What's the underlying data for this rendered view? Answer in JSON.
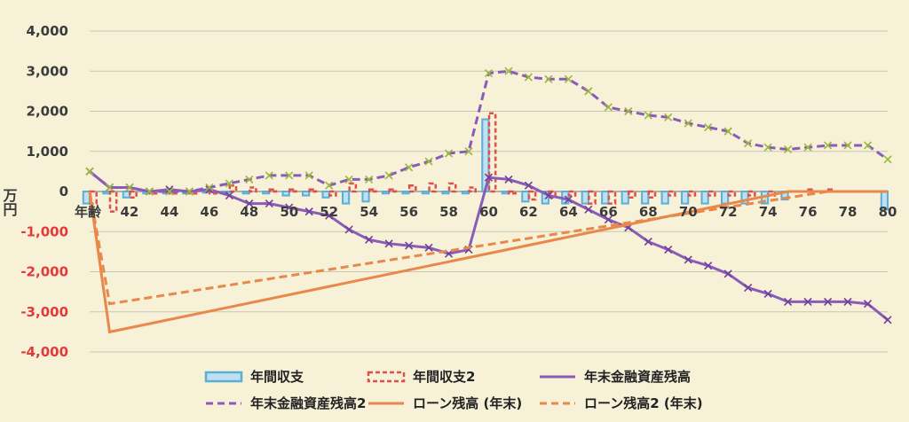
{
  "chart_data": {
    "type": "bar",
    "title": "",
    "ylabel": "万円",
    "xlabel_prefix": "年齢",
    "ylim": [
      -4000,
      4000
    ],
    "y_ticks": [
      {
        "value": 4000,
        "label": "4,000"
      },
      {
        "value": 3000,
        "label": "3,000"
      },
      {
        "value": 2000,
        "label": "2,000"
      },
      {
        "value": 1000,
        "label": "1,000"
      },
      {
        "value": 0,
        "label": "0"
      },
      {
        "value": -1000,
        "label": "-1,000"
      },
      {
        "value": -2000,
        "label": "-2,000"
      },
      {
        "value": -3000,
        "label": "-3,000"
      },
      {
        "value": -4000,
        "label": "-4,000"
      }
    ],
    "x_ticks": [
      "42",
      "44",
      "46",
      "48",
      "50",
      "52",
      "54",
      "56",
      "58",
      "60",
      "62",
      "64",
      "66",
      "68",
      "70",
      "72",
      "74",
      "76",
      "78",
      "80"
    ],
    "ages": [
      40,
      41,
      42,
      43,
      44,
      45,
      46,
      47,
      48,
      49,
      50,
      51,
      52,
      53,
      54,
      55,
      56,
      57,
      58,
      59,
      60,
      61,
      62,
      63,
      64,
      65,
      66,
      67,
      68,
      69,
      70,
      71,
      72,
      73,
      74,
      75,
      76,
      77,
      78,
      79,
      80
    ],
    "grid": true,
    "legend_position": "bottom",
    "series": [
      {
        "name": "年間収支",
        "kind": "bar",
        "color": "#5aaed8",
        "values": [
          -300,
          -50,
          -150,
          -50,
          -50,
          -50,
          -30,
          -30,
          -50,
          -50,
          -100,
          -100,
          -150,
          -300,
          -250,
          -50,
          -50,
          -50,
          -50,
          -50,
          1800,
          -50,
          -250,
          -300,
          -300,
          -300,
          -300,
          -300,
          -300,
          -300,
          -300,
          -300,
          -300,
          -300,
          -300,
          -200,
          0,
          0,
          0,
          0,
          -450
        ]
      },
      {
        "name": "年間収支2",
        "kind": "bar",
        "color": "#e0504a",
        "values": [
          -300,
          -500,
          -150,
          -50,
          -50,
          -50,
          -50,
          150,
          100,
          50,
          50,
          50,
          -100,
          200,
          50,
          50,
          150,
          200,
          200,
          100,
          1950,
          -50,
          -200,
          -150,
          -100,
          -300,
          -300,
          -150,
          -150,
          -100,
          -100,
          -100,
          -100,
          -100,
          -100,
          0,
          50,
          50,
          0,
          0,
          0
        ]
      },
      {
        "name": "年末金融資産残高",
        "kind": "line",
        "color": "#8a5cb8",
        "values": [
          500,
          100,
          100,
          0,
          50,
          0,
          50,
          -100,
          -300,
          -300,
          -400,
          -500,
          -600,
          -950,
          -1200,
          -1300,
          -1350,
          -1400,
          -1550,
          -1450,
          350,
          300,
          150,
          -100,
          -200,
          -450,
          -700,
          -900,
          -1250,
          -1450,
          -1700,
          -1850,
          -2050,
          -2400,
          -2550,
          -2750,
          -2750,
          -2750,
          -2750,
          -2800,
          -3200
        ]
      },
      {
        "name": "年末金融資産残高2",
        "kind": "line",
        "color": "#8a5cb8",
        "values": [
          500,
          100,
          100,
          0,
          0,
          0,
          100,
          200,
          300,
          400,
          400,
          400,
          150,
          300,
          300,
          400,
          600,
          750,
          950,
          1000,
          2950,
          3000,
          2850,
          2800,
          2800,
          2500,
          2100,
          2000,
          1900,
          1850,
          1700,
          1600,
          1500,
          1200,
          1100,
          1050,
          1100,
          1150,
          1150,
          1150,
          800
        ]
      },
      {
        "name": "ローン残高 (年末)",
        "kind": "line",
        "color": "#e8884a",
        "points": [
          [
            40,
            0
          ],
          [
            41,
            -3500
          ],
          [
            75,
            0
          ],
          [
            80,
            0
          ]
        ]
      },
      {
        "name": "ローン残高2 (年末)",
        "kind": "line",
        "color": "#e8884a",
        "points": [
          [
            40,
            0
          ],
          [
            41,
            -2800
          ],
          [
            77,
            0
          ],
          [
            80,
            0
          ]
        ]
      }
    ]
  }
}
